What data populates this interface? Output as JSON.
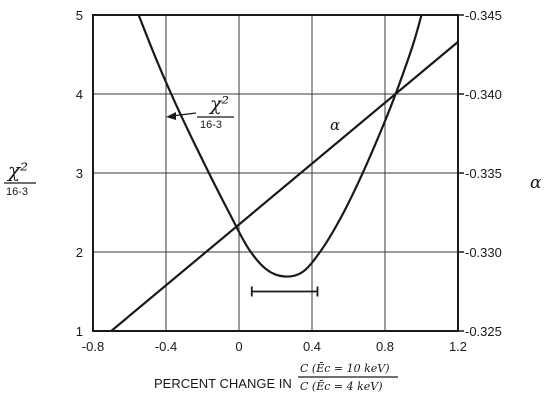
{
  "chart_data": {
    "type": "line",
    "grid": true,
    "x_axis": {
      "label": "PERCENT CHANGE IN",
      "label_ratio": {
        "numerator": "C (Ēc = 10 keV)",
        "denominator": "C (Ēc = 4 keV)"
      },
      "range": [
        -0.8,
        1.2
      ],
      "ticks": [
        "-0.8",
        "-0.4",
        "0",
        "0.4",
        "0.8",
        "1.2"
      ]
    },
    "y_left": {
      "label_numerator": "χ²",
      "label_denominator": "16-3",
      "range": [
        1,
        5
      ],
      "ticks": [
        "1",
        "2",
        "3",
        "4",
        "5"
      ]
    },
    "y_right": {
      "label": "α",
      "range": [
        -0.325,
        -0.345
      ],
      "ticks": [
        "-0.325",
        "-0.330",
        "-0.335",
        "-0.340",
        "-0.345"
      ]
    },
    "series": [
      {
        "name": "χ²/16-3",
        "axis": "left",
        "points": [
          {
            "x": -0.55,
            "y": 5.0
          },
          {
            "x": -0.45,
            "y": 4.42
          },
          {
            "x": -0.35,
            "y": 3.89
          },
          {
            "x": -0.25,
            "y": 3.4
          },
          {
            "x": -0.15,
            "y": 2.93
          },
          {
            "x": -0.05,
            "y": 2.48
          },
          {
            "x": 0.05,
            "y": 2.05
          },
          {
            "x": 0.15,
            "y": 1.78
          },
          {
            "x": 0.25,
            "y": 1.69
          },
          {
            "x": 0.35,
            "y": 1.75
          },
          {
            "x": 0.45,
            "y": 2.02
          },
          {
            "x": 0.55,
            "y": 2.4
          },
          {
            "x": 0.65,
            "y": 2.86
          },
          {
            "x": 0.75,
            "y": 3.38
          },
          {
            "x": 0.85,
            "y": 3.95
          },
          {
            "x": 0.95,
            "y": 4.6
          },
          {
            "x": 1.0,
            "y": 5.0
          }
        ]
      },
      {
        "name": "α",
        "axis": "right",
        "points": [
          {
            "x": -0.7,
            "y": -0.325
          },
          {
            "x": 1.2,
            "y": -0.3433
          }
        ]
      }
    ],
    "annotations": [
      {
        "text": "χ²",
        "sub": "16-3",
        "points_to": "χ² curve"
      },
      {
        "text": "α",
        "points_to": "α line"
      }
    ],
    "error_bar": {
      "x_from": 0.07,
      "x_to": 0.43,
      "y": 1.5
    }
  }
}
